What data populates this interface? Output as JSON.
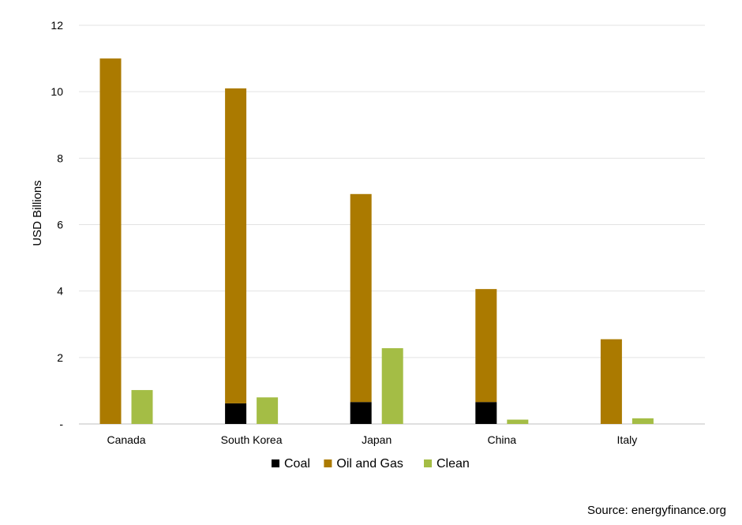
{
  "chart_data": {
    "type": "bar",
    "categories": [
      "Canada",
      "South Korea",
      "Japan",
      "China",
      "Italy"
    ],
    "stacked_groups": [
      [
        "Coal",
        "Oil and Gas"
      ],
      [
        "Clean"
      ]
    ],
    "series": [
      {
        "name": "Coal",
        "values": [
          0,
          0.62,
          0.66,
          0.66,
          0
        ],
        "color": "#000000"
      },
      {
        "name": "Oil and Gas",
        "values": [
          11.0,
          9.48,
          6.26,
          3.4,
          2.55
        ],
        "color": "#AB7A00"
      },
      {
        "name": "Clean",
        "values": [
          1.02,
          0.8,
          2.28,
          0.13,
          0.17
        ],
        "color": "#A4BD45"
      }
    ],
    "ylabel": "USD Billions",
    "ylim": [
      0,
      12
    ],
    "yticks": [
      0,
      2,
      4,
      6,
      8,
      10,
      12
    ],
    "ytick_labels": [
      "-",
      "2",
      "4",
      "6",
      "8",
      "10",
      "12"
    ],
    "grid": true,
    "legend_position": "bottom"
  },
  "source": "Source: energyfinance.org"
}
